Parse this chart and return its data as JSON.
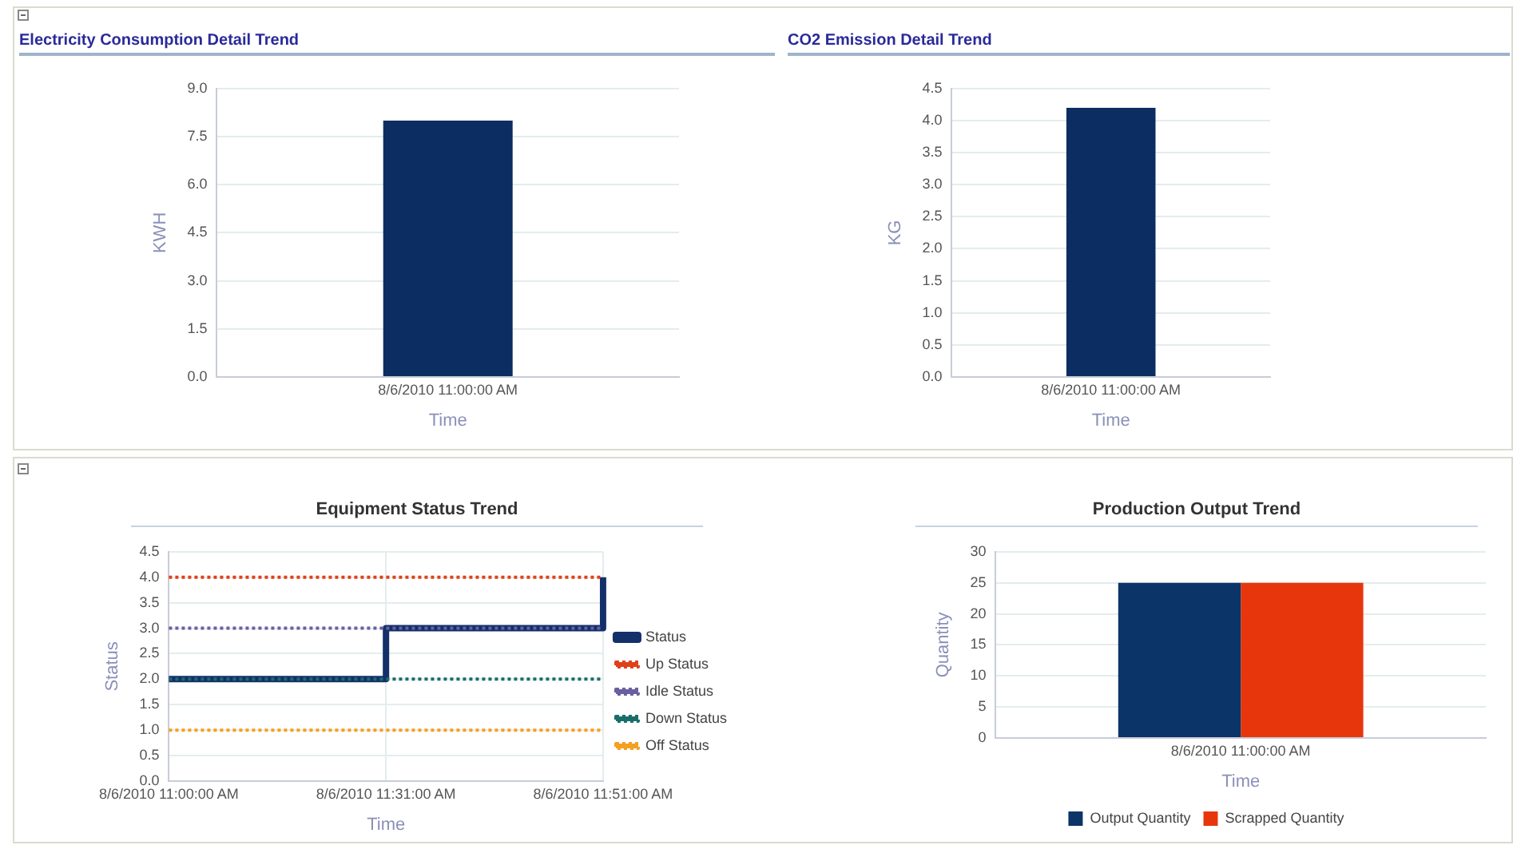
{
  "chart_data": [
    {
      "type": "bar",
      "title": "Electricity Consumption Detail Trend",
      "xlabel": "Time",
      "ylabel": "KWH",
      "categories": [
        "8/6/2010 11:00:00 AM"
      ],
      "values": [
        8.0
      ],
      "color": "#0b2d62",
      "ylim": [
        0,
        9
      ],
      "yticks": [
        {
          "value": 0,
          "label": "0.0"
        },
        {
          "value": 1.5,
          "label": "1.5"
        },
        {
          "value": 3,
          "label": "3.0"
        },
        {
          "value": 4.5,
          "label": "4.5"
        },
        {
          "value": 6,
          "label": "6.0"
        },
        {
          "value": 7.5,
          "label": "7.5"
        },
        {
          "value": 9,
          "label": "9.0"
        }
      ],
      "grid": "y"
    },
    {
      "type": "bar",
      "title": "CO2 Emission Detail Trend",
      "xlabel": "Time",
      "ylabel": "KG",
      "categories": [
        "8/6/2010 11:00:00 AM"
      ],
      "values": [
        4.2
      ],
      "color": "#0b2d62",
      "ylim": [
        0,
        4.5
      ],
      "yticks": [
        {
          "value": 0,
          "label": "0.0"
        },
        {
          "value": 0.5,
          "label": "0.5"
        },
        {
          "value": 1,
          "label": "1.0"
        },
        {
          "value": 1.5,
          "label": "1.5"
        },
        {
          "value": 2,
          "label": "2.0"
        },
        {
          "value": 2.5,
          "label": "2.5"
        },
        {
          "value": 3,
          "label": "3.0"
        },
        {
          "value": 3.5,
          "label": "3.5"
        },
        {
          "value": 4,
          "label": "4.0"
        },
        {
          "value": 4.5,
          "label": "4.5"
        }
      ],
      "grid": "y"
    },
    {
      "type": "line",
      "title": "Equipment Status Trend",
      "xlabel": "Time",
      "ylabel": "Status",
      "categories": [
        "8/6/2010 11:00:00 AM",
        "8/6/2010 11:31:00 AM",
        "8/6/2010 11:51:00 AM"
      ],
      "series": [
        {
          "name": "Status",
          "type": "step",
          "color": "#13306a",
          "values": [
            2,
            3,
            4
          ]
        },
        {
          "name": "Up Status",
          "color": "#e0401a",
          "values": [
            4,
            4,
            4
          ],
          "line_style": "dotted"
        },
        {
          "name": "Idle Status",
          "color": "#6a5fa0",
          "values": [
            3,
            3,
            3
          ],
          "line_style": "dotted"
        },
        {
          "name": "Down Status",
          "color": "#1a6e6a",
          "values": [
            2,
            2,
            2
          ],
          "line_style": "dotted"
        },
        {
          "name": "Off Status",
          "color": "#f5a020",
          "values": [
            1,
            1,
            1
          ],
          "line_style": "dotted"
        }
      ],
      "ylim": [
        0,
        4.5
      ],
      "yticks": [
        {
          "value": 0,
          "label": "0.0"
        },
        {
          "value": 0.5,
          "label": "0.5"
        },
        {
          "value": 1,
          "label": "1.0"
        },
        {
          "value": 1.5,
          "label": "1.5"
        },
        {
          "value": 2,
          "label": "2.0"
        },
        {
          "value": 2.5,
          "label": "2.5"
        },
        {
          "value": 3,
          "label": "3.0"
        },
        {
          "value": 3.5,
          "label": "3.5"
        },
        {
          "value": 4,
          "label": "4.0"
        },
        {
          "value": 4.5,
          "label": "4.5"
        }
      ],
      "grid": true,
      "legend": "right",
      "marker": "none"
    },
    {
      "type": "bar",
      "title": "Production Output Trend",
      "xlabel": "Time",
      "ylabel": "Quantity",
      "categories": [
        "8/6/2010 11:00:00 AM"
      ],
      "series": [
        {
          "name": "Output Quantity",
          "color": "#0b3468",
          "values": [
            25
          ]
        },
        {
          "name": "Scrapped Quantity",
          "color": "#e8360c",
          "values": [
            25
          ]
        }
      ],
      "ylim": [
        0,
        30
      ],
      "yticks": [
        0,
        5,
        10,
        15,
        20,
        25,
        30
      ],
      "grid": "y",
      "legend": "bottom"
    }
  ]
}
